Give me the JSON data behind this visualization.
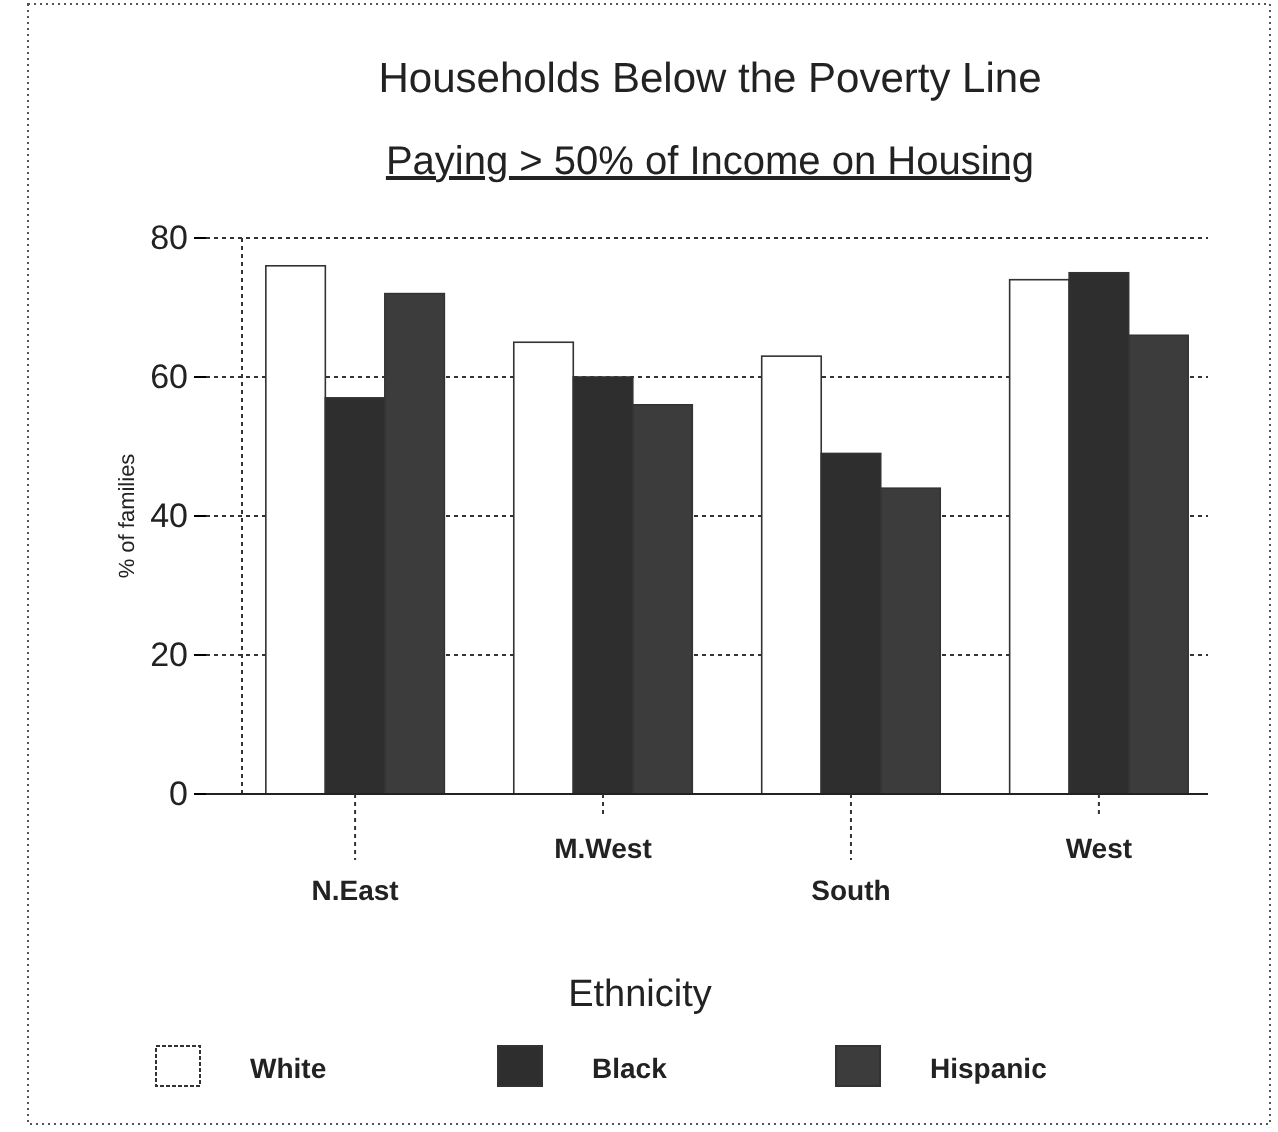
{
  "chart_data": {
    "type": "bar",
    "title": "Households Below the Poverty Line",
    "subtitle": "Paying > 50% of Income on Housing",
    "ylabel": "% of families",
    "legend_title": "Ethnicity",
    "categories": [
      "N.East",
      "M.West",
      "South",
      "West"
    ],
    "series": [
      {
        "name": "White",
        "color": "#ffffff",
        "values": [
          76,
          65,
          63,
          74
        ]
      },
      {
        "name": "Black",
        "color": "#2e2e2e",
        "values": [
          57,
          60,
          49,
          75
        ]
      },
      {
        "name": "Hispanic",
        "color": "#3c3c3c",
        "values": [
          72,
          56,
          44,
          66
        ]
      }
    ],
    "ylim": [
      0,
      80
    ],
    "yticks": [
      0,
      20,
      40,
      60,
      80
    ],
    "grid": "y",
    "legend": "bottom"
  }
}
